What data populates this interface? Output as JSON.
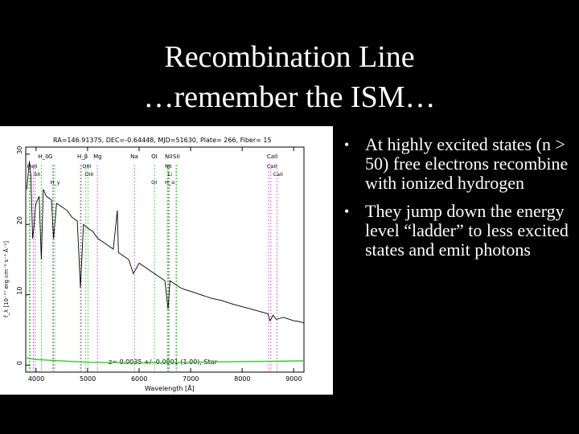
{
  "slide": {
    "title_line1": "Recombination Line",
    "title_line2": "…remember the ISM…"
  },
  "bullets": [
    "At highly excited states (n > 50) free electrons recombine with ionized hydrogen",
    "They jump down the energy level “ladder” to less excited states and emit photons"
  ],
  "figure": {
    "header": "RA=146.91375, DEC=-0.64448, MJD=51630, Plate= 266, Fiber= 15",
    "footer": "z= 0.0035 +/- 0.0001 (1.00), Star",
    "xlabel": "Wavelength [Å]",
    "ylabel": "f_λ [10⁻¹⁷ erg cm⁻² s⁻¹ Å⁻¹]",
    "xticks": [
      "4000",
      "5000",
      "6000",
      "7000",
      "8000",
      "9000"
    ],
    "yticks": [
      "0",
      "10",
      "20",
      "30"
    ],
    "line_labels": [
      "H_δ",
      "G",
      "H_β",
      "Mg",
      "Na",
      "OI",
      "NII",
      "SII",
      "CaII",
      "HeII",
      "SII",
      "H_γ",
      "OIII",
      "OIII",
      "OI",
      "NII",
      "Li",
      "H_α",
      "CaII",
      "CaII"
    ],
    "colors": {
      "emission": "#32cd32",
      "absorption": "#dd44dd",
      "marker": "#000000"
    }
  },
  "chart_data": {
    "type": "line",
    "title": "RA=146.91375, DEC=-0.64448, MJD=51630, Plate= 266, Fiber= 15",
    "xlabel": "Wavelength [Å]",
    "ylabel": "f_λ [10⁻¹⁷ erg cm⁻² s⁻¹ Å⁻¹]",
    "xlim": [
      3800,
      9200
    ],
    "ylim": [
      -1,
      31
    ],
    "series": [
      {
        "x": [
          3820,
          3870,
          3900,
          3935,
          3965,
          3980,
          4000,
          4060,
          4102,
          4140,
          4200,
          4300,
          4340,
          4400,
          4500,
          4600,
          4700,
          4800,
          4861,
          4920,
          5000,
          5100,
          5200,
          5300,
          5400,
          5500,
          5577,
          5600,
          5700,
          5800,
          5890,
          6000,
          6100,
          6200,
          6300,
          6400,
          6500,
          6563,
          6600,
          6700,
          6800,
          6900,
          7000,
          7200,
          7400,
          7600,
          7800,
          8000,
          8200,
          8400,
          8500,
          8542,
          8600,
          8662,
          8800,
          9000,
          9100,
          9200
        ],
        "y": [
          25,
          29,
          27,
          18,
          20,
          22,
          23,
          24,
          15,
          25,
          24,
          23.5,
          18,
          23,
          22.5,
          22,
          21,
          20.5,
          11,
          20,
          19.5,
          19,
          18,
          17.5,
          17,
          16.5,
          22,
          16,
          15.5,
          15,
          13,
          14.5,
          14,
          13.5,
          13,
          12.5,
          12,
          8,
          12,
          11.5,
          11,
          10.7,
          10.5,
          10,
          9.5,
          9.2,
          8.7,
          8.3,
          7.9,
          7.5,
          7.3,
          6.3,
          7.1,
          6.5,
          6.8,
          6.3,
          6.2,
          6.0
        ]
      },
      {
        "x": [
          3820,
          4000,
          5000,
          6000,
          7000,
          8000,
          9200
        ],
        "y": [
          1.0,
          0.8,
          0.4,
          0.3,
          0.4,
          0.5,
          0.6
        ]
      }
    ],
    "emission_lines": [
      3869,
      3889,
      4102,
      4340,
      4363,
      4861,
      4959,
      5007,
      6300,
      6548,
      6563,
      6584,
      6717,
      6731
    ],
    "absorption_lines": [
      3934,
      3969,
      4304,
      4861,
      5175,
      5894,
      6563,
      8498,
      8542,
      8662
    ],
    "grid": false
  }
}
